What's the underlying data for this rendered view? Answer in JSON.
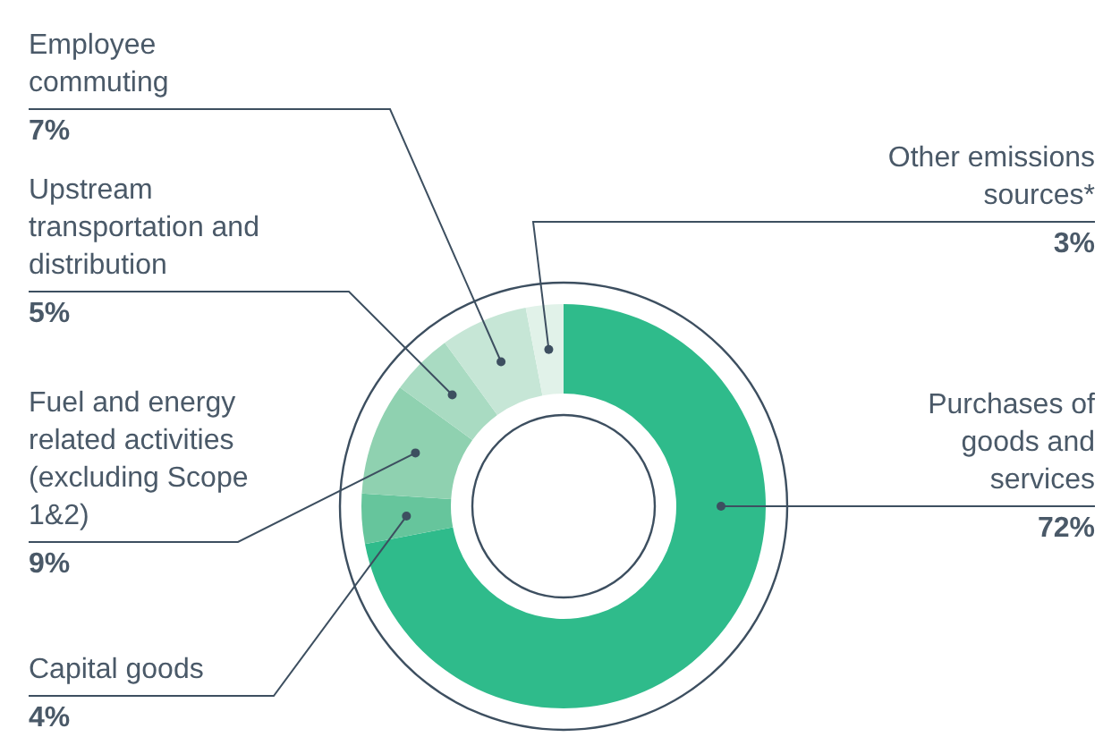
{
  "chart_data": {
    "type": "donut",
    "categories": [
      "Purchases of goods and services",
      "Capital goods",
      "Fuel and energy related activities (excluding Scope 1&2)",
      "Upstream transportation and distribution",
      "Employee commuting",
      "Other emissions sources*"
    ],
    "values": [
      72,
      4,
      9,
      5,
      7,
      3
    ],
    "value_labels": [
      "72%",
      "4%",
      "9%",
      "5%",
      "7%",
      "3%"
    ],
    "colors": [
      "#2fbb8b",
      "#66c59c",
      "#8fd1b0",
      "#a9dbc2",
      "#c6e6d6",
      "#e1f2e9"
    ]
  }
}
